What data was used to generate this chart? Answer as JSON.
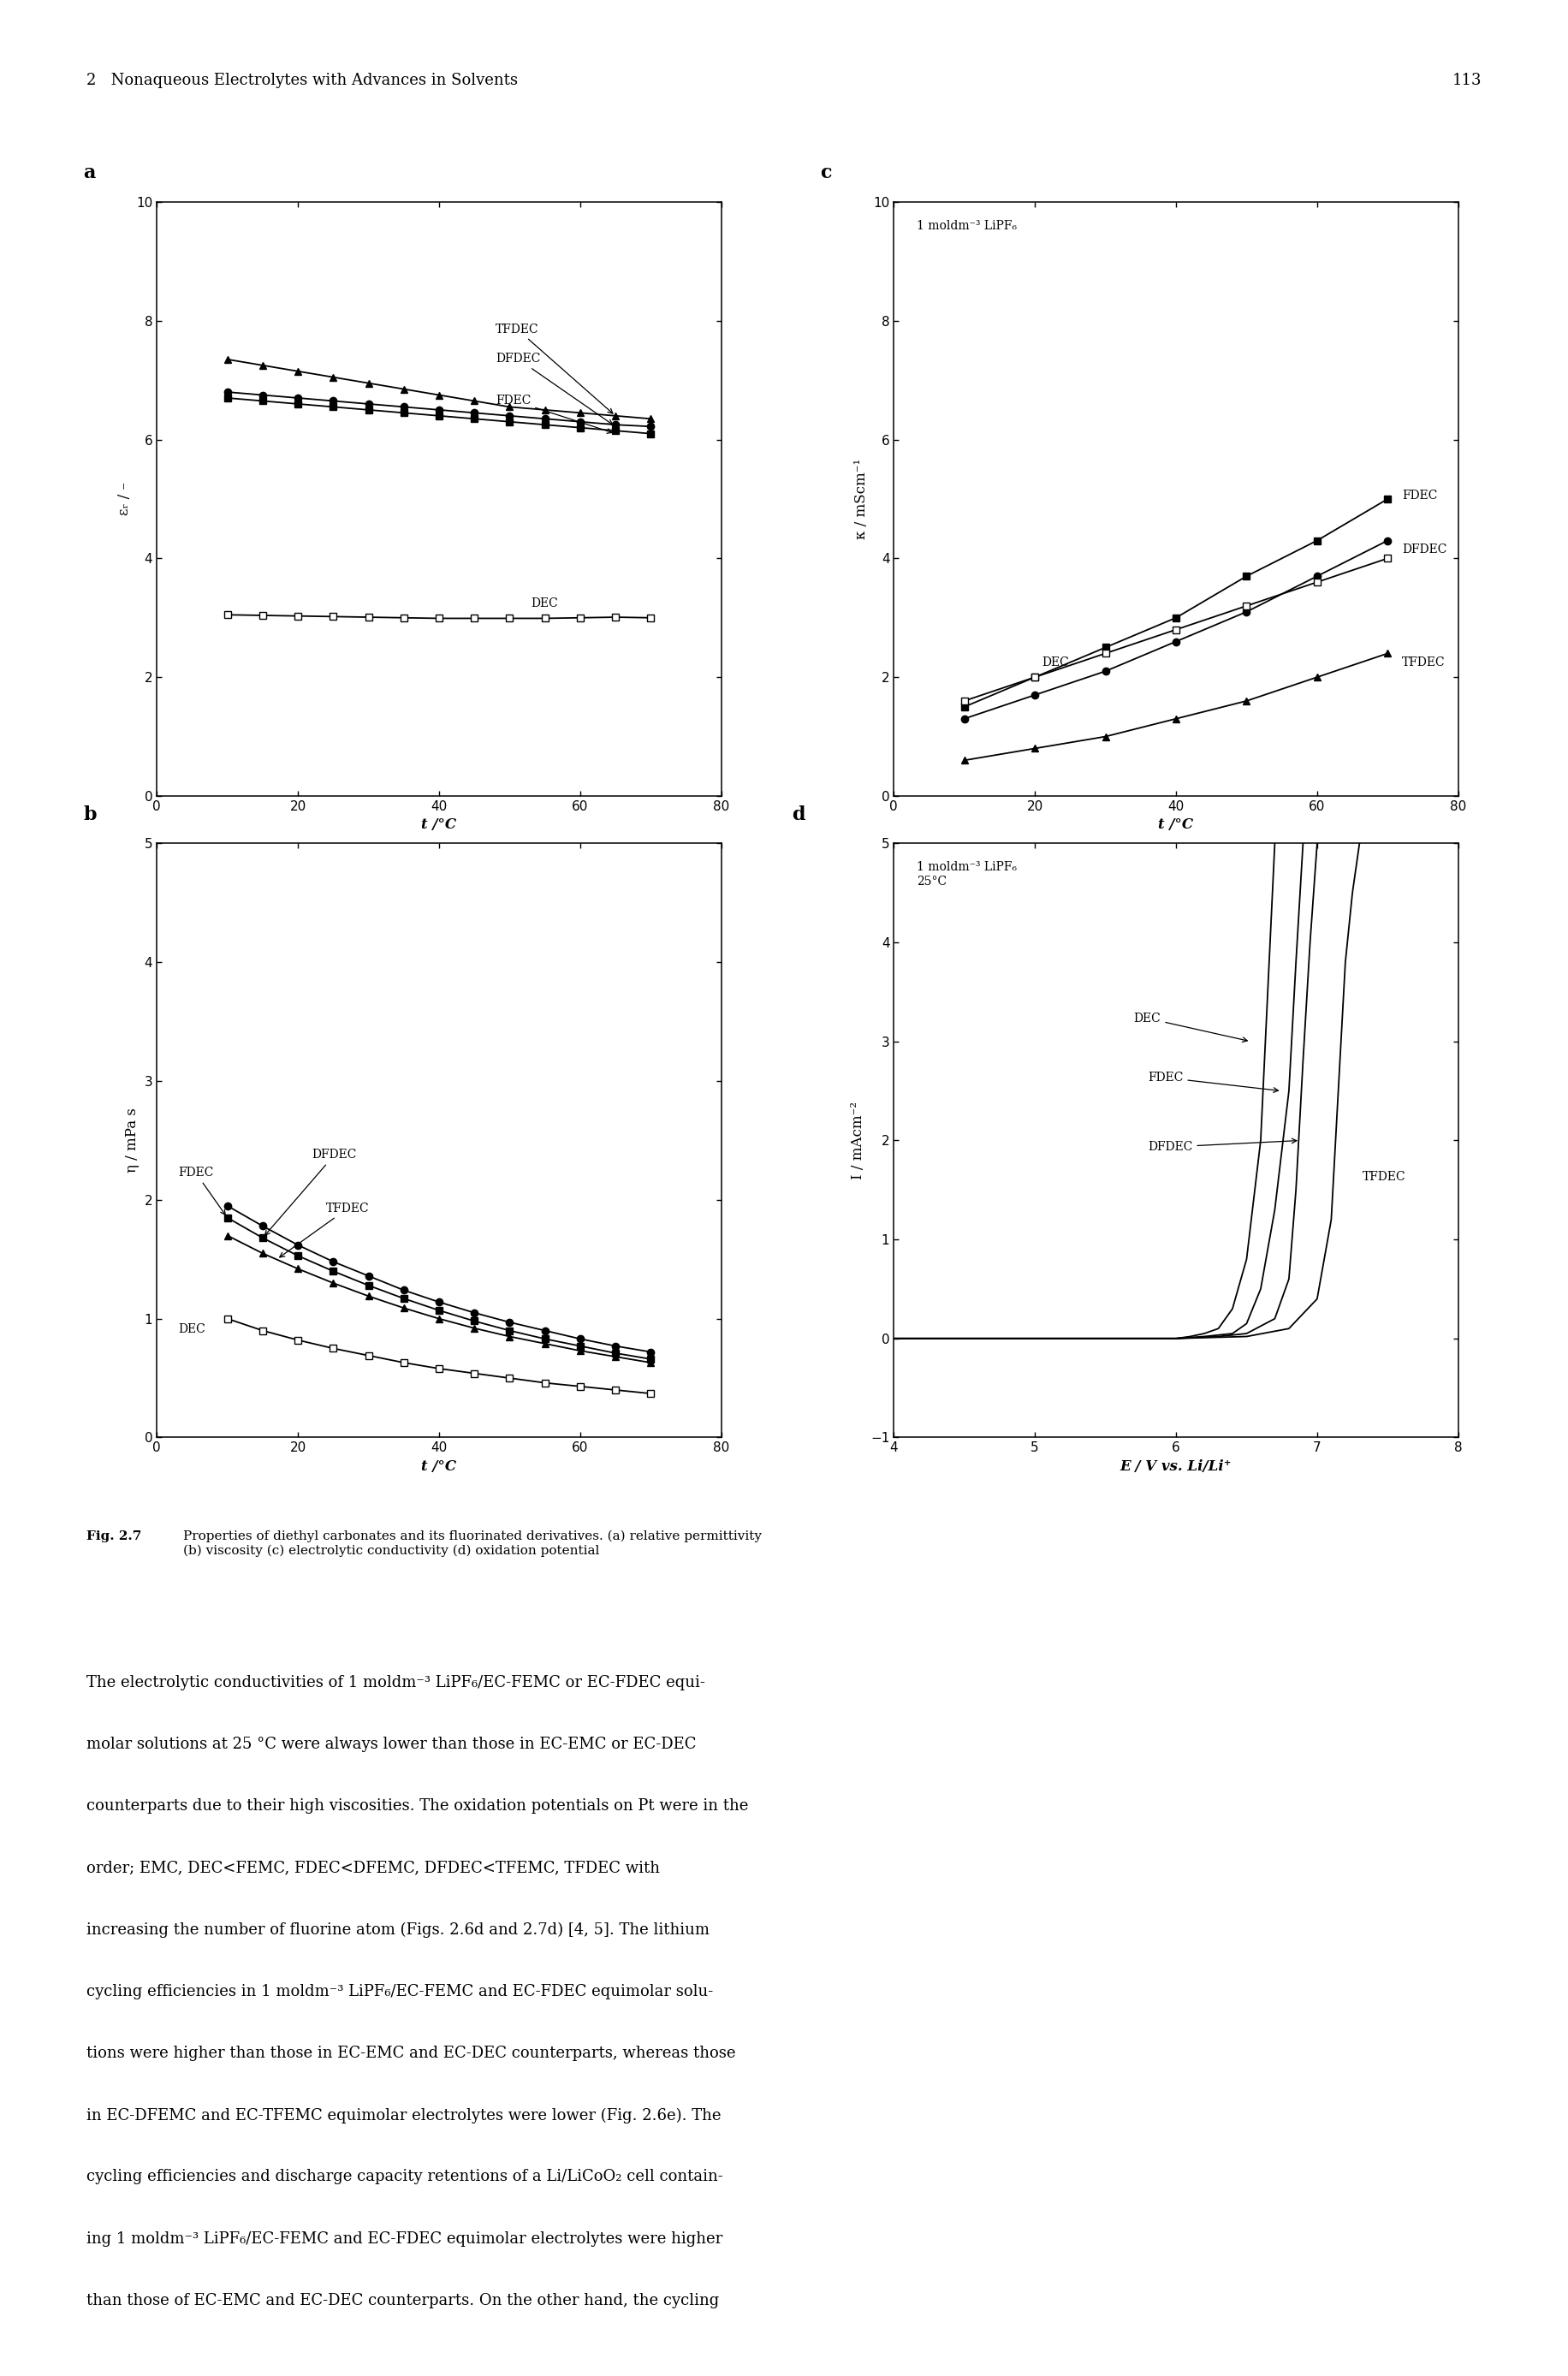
{
  "page_header": "2   Nonaqueous Electrolytes with Advances in Solvents",
  "page_number": "113",
  "panel_a": {
    "label": "a",
    "xlabel": "t /°C",
    "ylabel": "εᵣ / –",
    "xlim": [
      0,
      80
    ],
    "ylim": [
      0,
      10
    ],
    "xticks": [
      0,
      20,
      40,
      60,
      80
    ],
    "yticks": [
      0,
      2,
      4,
      6,
      8,
      10
    ],
    "series": {
      "TFDEC": {
        "x": [
          10,
          15,
          20,
          25,
          30,
          35,
          40,
          45,
          50,
          55,
          60,
          65,
          70
        ],
        "y": [
          7.35,
          7.25,
          7.15,
          7.05,
          6.95,
          6.85,
          6.75,
          6.65,
          6.55,
          6.5,
          6.45,
          6.4,
          6.35
        ],
        "marker": "^",
        "filled": true
      },
      "DFDEC": {
        "x": [
          10,
          15,
          20,
          25,
          30,
          35,
          40,
          45,
          50,
          55,
          60,
          65,
          70
        ],
        "y": [
          6.8,
          6.75,
          6.7,
          6.65,
          6.6,
          6.55,
          6.5,
          6.45,
          6.4,
          6.35,
          6.3,
          6.25,
          6.22
        ],
        "marker": "o",
        "filled": true
      },
      "FDEC": {
        "x": [
          10,
          15,
          20,
          25,
          30,
          35,
          40,
          45,
          50,
          55,
          60,
          65,
          70
        ],
        "y": [
          6.7,
          6.65,
          6.6,
          6.55,
          6.5,
          6.45,
          6.4,
          6.35,
          6.3,
          6.25,
          6.2,
          6.15,
          6.1
        ],
        "marker": "s",
        "filled": true
      },
      "DEC": {
        "x": [
          10,
          15,
          20,
          25,
          30,
          35,
          40,
          45,
          50,
          55,
          60,
          65,
          70
        ],
        "y": [
          3.05,
          3.04,
          3.03,
          3.02,
          3.01,
          3.0,
          2.99,
          2.99,
          2.99,
          2.99,
          3.0,
          3.01,
          3.0
        ],
        "marker": "s",
        "filled": false
      }
    }
  },
  "panel_b": {
    "label": "b",
    "xlabel": "t /°C",
    "ylabel": "η / mPa s",
    "xlim": [
      0,
      80
    ],
    "ylim": [
      0,
      5
    ],
    "xticks": [
      0,
      20,
      40,
      60,
      80
    ],
    "yticks": [
      0,
      1,
      2,
      3,
      4,
      5
    ],
    "series": {
      "DFDEC": {
        "x": [
          10,
          15,
          20,
          25,
          30,
          35,
          40,
          45,
          50,
          55,
          60,
          65,
          70
        ],
        "y": [
          1.95,
          1.78,
          1.62,
          1.48,
          1.36,
          1.24,
          1.14,
          1.05,
          0.97,
          0.9,
          0.83,
          0.77,
          0.72
        ],
        "marker": "o",
        "filled": true
      },
      "TFDEC": {
        "x": [
          10,
          15,
          20,
          25,
          30,
          35,
          40,
          45,
          50,
          55,
          60,
          65,
          70
        ],
        "y": [
          1.7,
          1.55,
          1.42,
          1.3,
          1.19,
          1.09,
          1.0,
          0.92,
          0.85,
          0.79,
          0.73,
          0.68,
          0.63
        ],
        "marker": "^",
        "filled": true
      },
      "FDEC": {
        "x": [
          10,
          15,
          20,
          25,
          30,
          35,
          40,
          45,
          50,
          55,
          60,
          65,
          70
        ],
        "y": [
          1.85,
          1.68,
          1.53,
          1.4,
          1.28,
          1.17,
          1.07,
          0.98,
          0.9,
          0.83,
          0.77,
          0.71,
          0.66
        ],
        "marker": "s",
        "filled": true
      },
      "DEC": {
        "x": [
          10,
          15,
          20,
          25,
          30,
          35,
          40,
          45,
          50,
          55,
          60,
          65,
          70
        ],
        "y": [
          1.0,
          0.9,
          0.82,
          0.75,
          0.69,
          0.63,
          0.58,
          0.54,
          0.5,
          0.46,
          0.43,
          0.4,
          0.37
        ],
        "marker": "s",
        "filled": false
      }
    }
  },
  "panel_c": {
    "label": "c",
    "xlabel": "t /°C",
    "ylabel": "κ / mScm⁻¹",
    "xlim": [
      0,
      80
    ],
    "ylim": [
      0,
      10
    ],
    "xticks": [
      0,
      20,
      40,
      60,
      80
    ],
    "yticks": [
      0,
      2,
      4,
      6,
      8,
      10
    ],
    "inset_text": "1 moldm⁻³ LiPF₆",
    "series": {
      "FDEC": {
        "x": [
          10,
          20,
          30,
          40,
          50,
          60,
          70
        ],
        "y": [
          1.5,
          2.0,
          2.5,
          3.0,
          3.7,
          4.3,
          5.0
        ],
        "marker": "s",
        "filled": true
      },
      "DFDEC": {
        "x": [
          10,
          20,
          30,
          40,
          50,
          60,
          70
        ],
        "y": [
          1.3,
          1.7,
          2.1,
          2.6,
          3.1,
          3.7,
          4.3
        ],
        "marker": "o",
        "filled": true
      },
      "DEC": {
        "x": [
          10,
          20,
          30,
          40,
          50,
          60,
          70
        ],
        "y": [
          1.6,
          2.0,
          2.4,
          2.8,
          3.2,
          3.6,
          4.0
        ],
        "marker": "s",
        "filled": false
      },
      "TFDEC": {
        "x": [
          10,
          20,
          30,
          40,
          50,
          60,
          70
        ],
        "y": [
          0.6,
          0.8,
          1.0,
          1.3,
          1.6,
          2.0,
          2.4
        ],
        "marker": "^",
        "filled": true
      }
    }
  },
  "panel_d": {
    "label": "d",
    "xlabel": "E / V vs. Li/Li⁺",
    "ylabel": "I / mAcm⁻²",
    "xlim": [
      4,
      8
    ],
    "ylim": [
      -1,
      5
    ],
    "xticks": [
      4,
      5,
      6,
      7,
      8
    ],
    "yticks": [
      -1,
      0,
      1,
      2,
      3,
      4,
      5
    ],
    "inset_text": "1 moldm⁻³ LiPF₆\n25°C",
    "series": {
      "DEC": {
        "x": [
          4.0,
          4.5,
          5.0,
          5.5,
          5.8,
          6.0,
          6.1,
          6.2,
          6.3,
          6.4,
          6.5,
          6.6,
          6.65,
          6.7
        ],
        "y": [
          0.0,
          0.0,
          0.0,
          0.0,
          0.0,
          0.0,
          0.02,
          0.05,
          0.1,
          0.3,
          0.8,
          2.0,
          3.5,
          5.0
        ]
      },
      "FDEC": {
        "x": [
          4.0,
          4.5,
          5.0,
          5.5,
          5.8,
          6.0,
          6.2,
          6.4,
          6.5,
          6.6,
          6.7,
          6.8,
          6.85,
          6.9
        ],
        "y": [
          0.0,
          0.0,
          0.0,
          0.0,
          0.0,
          0.0,
          0.02,
          0.05,
          0.15,
          0.5,
          1.3,
          2.5,
          3.8,
          5.0
        ]
      },
      "DFDEC": {
        "x": [
          4.0,
          4.5,
          5.0,
          5.5,
          5.8,
          6.0,
          6.3,
          6.5,
          6.7,
          6.8,
          6.85,
          6.9,
          6.95,
          7.0
        ],
        "y": [
          0.0,
          0.0,
          0.0,
          0.0,
          0.0,
          0.0,
          0.02,
          0.05,
          0.2,
          0.6,
          1.5,
          2.8,
          4.0,
          5.0
        ]
      },
      "TFDEC": {
        "x": [
          4.0,
          4.5,
          5.0,
          5.5,
          5.8,
          6.0,
          6.5,
          6.8,
          7.0,
          7.1,
          7.15,
          7.2,
          7.25,
          7.3
        ],
        "y": [
          0.0,
          0.0,
          0.0,
          0.0,
          0.0,
          0.0,
          0.02,
          0.1,
          0.4,
          1.2,
          2.5,
          3.8,
          4.5,
          5.0
        ]
      }
    }
  },
  "body_text_lines": [
    "The electrolytic conductivities of 1 moldm⁻³ LiPF₆/EC-FEMC or EC-FDEC equi-",
    "molar solutions at 25 °C were always lower than those in EC-EMC or EC-DEC",
    "counterparts due to their high viscosities. The oxidation potentials on Pt were in the",
    "order; EMC, DEC<FEMC, FDEC<DFEMC, DFDEC<TFEMC, TFDEC with",
    "increasing the number of fluorine atom (Figs. 2.6d and 2.7d) [4, 5]. The lithium",
    "cycling efficiencies in 1 moldm⁻³ LiPF₆/EC-FEMC and EC-FDEC equimolar solu-",
    "tions were higher than those in EC-EMC and EC-DEC counterparts, whereas those",
    "in EC-DFEMC and EC-TFEMC equimolar electrolytes were lower (Fig. 2.6e). The",
    "cycling efficiencies and discharge capacity retentions of a Li/LiCoO₂ cell contain-",
    "ing 1 moldm⁻³ LiPF₆/EC-FEMC and EC-FDEC equimolar electrolytes were higher",
    "than those of EC-EMC and EC-DEC counterparts. On the other hand, the cycling"
  ]
}
